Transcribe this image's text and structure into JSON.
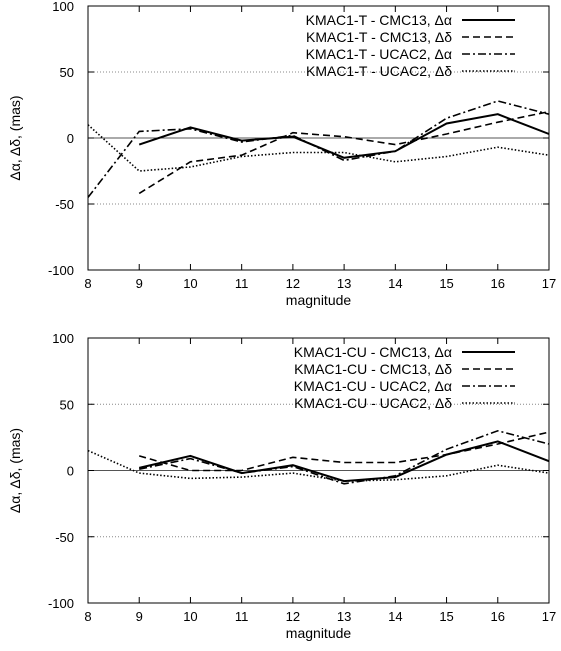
{
  "chart_data": [
    {
      "type": "line",
      "xlabel": "magnitude",
      "ylabel": "Δα, Δδ, (mas)",
      "xlim": [
        8,
        17
      ],
      "ylim": [
        -100,
        100
      ],
      "xticks": [
        "8",
        "9",
        "10",
        "11",
        "12",
        "13",
        "14",
        "15",
        "16",
        "17"
      ],
      "yticks": [
        "100",
        "50",
        "0",
        "-50",
        "-100"
      ],
      "grid": false,
      "reference_lines": [
        0,
        50,
        -50
      ],
      "legend_position": "top-right",
      "series": [
        {
          "name": "KMAC1-T - CMC13, Δα",
          "style": "solid",
          "x": [
            9,
            10,
            11,
            12,
            13,
            14,
            15,
            16,
            17
          ],
          "y": [
            -5,
            8,
            -2,
            1,
            -15,
            -10,
            11,
            18,
            3
          ]
        },
        {
          "name": "KMAC1-T - CMC13, Δδ",
          "style": "dashed",
          "x": [
            9,
            10,
            11,
            12,
            13,
            14,
            15,
            16,
            17
          ],
          "y": [
            -42,
            -18,
            -13,
            4,
            1,
            -5,
            3,
            12,
            20
          ]
        },
        {
          "name": "KMAC1-T - UCAC2, Δα",
          "style": "dashdot",
          "x": [
            8,
            9,
            10,
            11,
            12,
            13,
            14,
            15,
            16,
            17
          ],
          "y": [
            -45,
            5,
            7,
            -3,
            2,
            -17,
            -10,
            15,
            28,
            18
          ]
        },
        {
          "name": "KMAC1-T - UCAC2, Δδ",
          "style": "dotted",
          "x": [
            8,
            9,
            10,
            11,
            12,
            13,
            14,
            15,
            16,
            17
          ],
          "y": [
            10,
            -25,
            -22,
            -14,
            -11,
            -11,
            -18,
            -14,
            -7,
            -13
          ]
        }
      ]
    },
    {
      "type": "line",
      "xlabel": "magnitude",
      "ylabel": "Δα, Δδ, (mas)",
      "xlim": [
        8,
        17
      ],
      "ylim": [
        -100,
        100
      ],
      "xticks": [
        "8",
        "9",
        "10",
        "11",
        "12",
        "13",
        "14",
        "15",
        "16",
        "17"
      ],
      "yticks": [
        "100",
        "50",
        "0",
        "-50",
        "-100"
      ],
      "grid": false,
      "reference_lines": [
        0,
        50,
        -50
      ],
      "legend_position": "top-right",
      "series": [
        {
          "name": "KMAC1-CU - CMC13, Δα",
          "style": "solid",
          "x": [
            9,
            10,
            11,
            12,
            13,
            14,
            15,
            16,
            17
          ],
          "y": [
            2,
            11,
            -2,
            4,
            -8,
            -5,
            12,
            22,
            7
          ]
        },
        {
          "name": "KMAC1-CU - CMC13, Δδ",
          "style": "dashed",
          "x": [
            9,
            10,
            11,
            12,
            13,
            14,
            15,
            16,
            17
          ],
          "y": [
            11,
            0,
            0,
            10,
            6,
            6,
            12,
            20,
            29
          ]
        },
        {
          "name": "KMAC1-CU - UCAC2, Δα",
          "style": "dashdot",
          "x": [
            9,
            10,
            11,
            12,
            13,
            14,
            15,
            16,
            17
          ],
          "y": [
            1,
            9,
            -2,
            3,
            -10,
            -4,
            16,
            30,
            20
          ]
        },
        {
          "name": "KMAC1-CU - UCAC2, Δδ",
          "style": "dotted",
          "x": [
            8,
            9,
            10,
            11,
            12,
            13,
            14,
            15,
            16,
            17
          ],
          "y": [
            15,
            -2,
            -6,
            -5,
            -2,
            -8,
            -7,
            -4,
            4,
            -2
          ]
        }
      ]
    }
  ]
}
